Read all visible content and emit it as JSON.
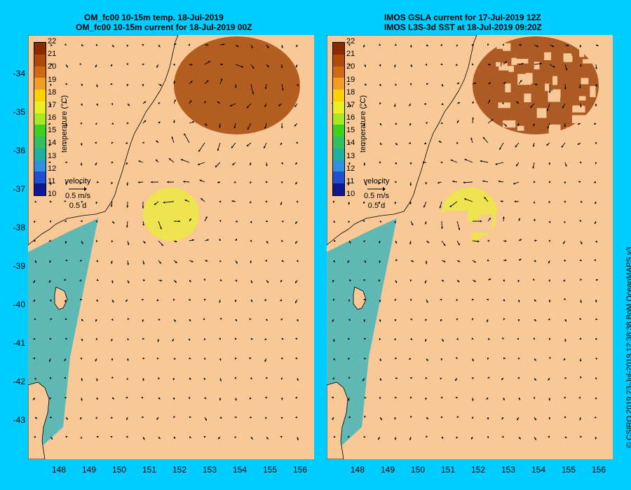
{
  "left": {
    "title_line1": "OM_fc00 10-15m temp. 18-Jul-2019",
    "title_line2": "OM_fc00 10-15m current for 18-Jul-2019 00Z"
  },
  "right": {
    "title_line1": "IMOS GSLA current for 17-Jul-2019 12Z",
    "title_line2": "IMOS L3S-3d SST at 18-Jul-2019 09:20Z"
  },
  "y_ticks": [
    "-34",
    "-35",
    "-36",
    "-37",
    "-38",
    "-39",
    "-40",
    "-41",
    "-42",
    "-43"
  ],
  "x_ticks": [
    "148",
    "149",
    "150",
    "151",
    "152",
    "153",
    "154",
    "155",
    "156"
  ],
  "colorbar": {
    "ticks": [
      "22",
      "21",
      "20",
      "19",
      "18",
      "17",
      "16",
      "15",
      "14",
      "13",
      "12",
      "11",
      "10"
    ],
    "title": "temperature (°C)",
    "colors": [
      "#8b2a00",
      "#b04a08",
      "#d06a10",
      "#f0a020",
      "#ffd000",
      "#e8f020",
      "#a8e820",
      "#40d020",
      "#30c060",
      "#20b0a0",
      "#3090e0",
      "#2050d0",
      "#101890"
    ]
  },
  "velocity_key": {
    "label": "velocity",
    "speed": "0.5 m/s",
    "duration": "0.5 d"
  },
  "credit": "© CSIRO 2019   23-Jul-2019 12:38:38 BoM OceanMAPS v3",
  "colors": {
    "background": "#00ccff",
    "land": "#f8c896",
    "missing": "#f8c896"
  }
}
